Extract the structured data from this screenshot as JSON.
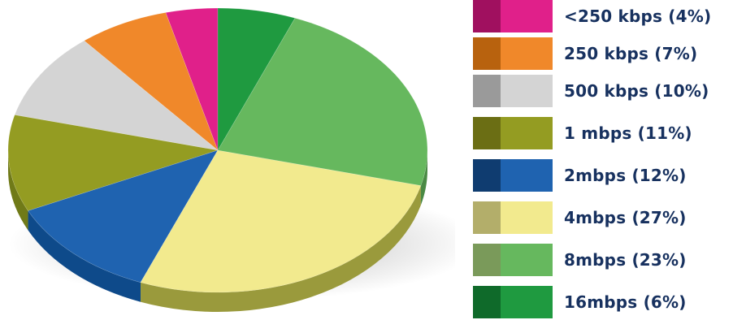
{
  "chart_data": {
    "type": "pie",
    "title": "",
    "slices": [
      {
        "label": "<250 kbps (4%)",
        "value": 4,
        "color": "#e0208a",
        "dark": "#a0105f",
        "side": "#8a0a4f"
      },
      {
        "label": "250 kbps (7%)",
        "value": 7,
        "color": "#f0882a",
        "dark": "#b8620e",
        "side": "#a8580c"
      },
      {
        "label": "500 kbps (10%)",
        "value": 10,
        "color": "#d4d4d4",
        "dark": "#9a9a9a",
        "side": "#8e8e8e"
      },
      {
        "label": "1 mbps (11%)",
        "value": 11,
        "color": "#949c22",
        "dark": "#6b6e14",
        "side": "#707a18"
      },
      {
        "label": "2mbps (12%)",
        "value": 12,
        "color": "#1f63b0",
        "dark": "#0f3c70",
        "side": "#0e4a8a"
      },
      {
        "label": "4mbps (27%)",
        "value": 27,
        "color": "#f2ea8e",
        "dark": "#b3ae6a",
        "side": "#9a9a3c"
      },
      {
        "label": "8mbps (23%)",
        "value": 23,
        "color": "#66b85e",
        "dark": "#7a9a5a",
        "side": "#4a8a44"
      },
      {
        "label": "16mbps (6%)",
        "value": 6,
        "color": "#1f9a40",
        "dark": "#0f6a2a",
        "side": "#0f6a2a"
      }
    ],
    "legend_position": "right"
  }
}
